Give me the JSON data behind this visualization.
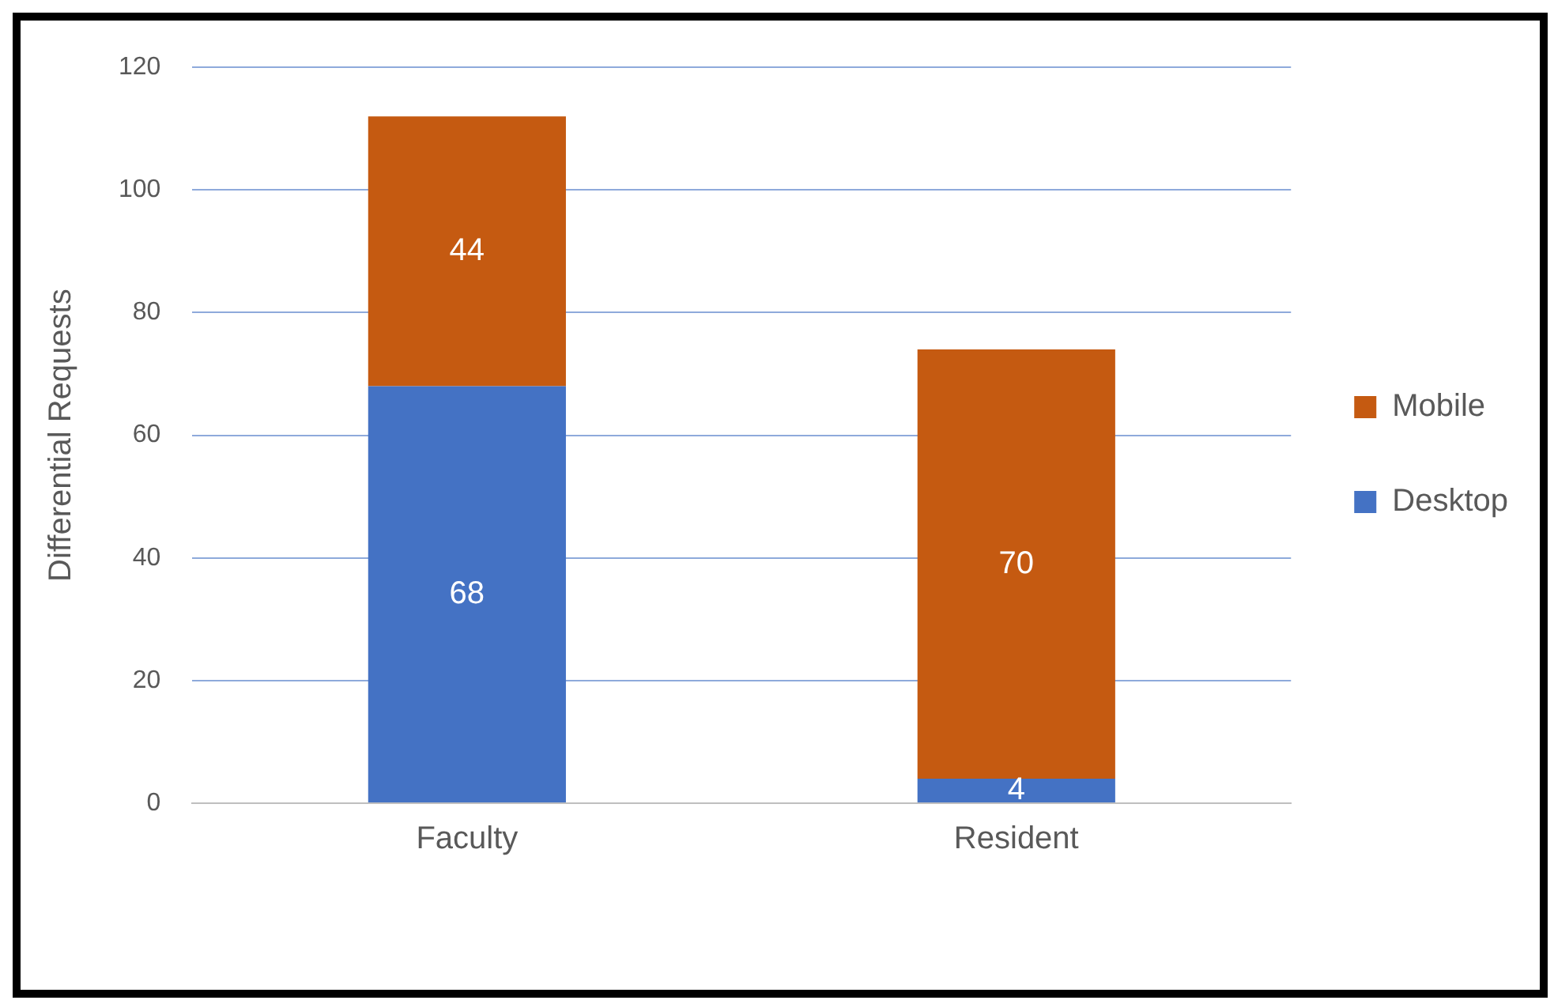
{
  "chart_data": {
    "type": "bar",
    "ylabel": "Differential Requests",
    "categories": [
      "Faculty",
      "Resident"
    ],
    "stacked": true,
    "series": [
      {
        "name": "Desktop",
        "color": "#4472c4",
        "values": [
          68,
          4
        ]
      },
      {
        "name": "Mobile",
        "color": "#c55a11",
        "values": [
          44,
          70
        ]
      }
    ],
    "ylim": [
      0,
      120
    ],
    "yticks": [
      0,
      20,
      40,
      60,
      80,
      100,
      120
    ],
    "grid": "y",
    "legend": "right",
    "data_labels": true
  }
}
